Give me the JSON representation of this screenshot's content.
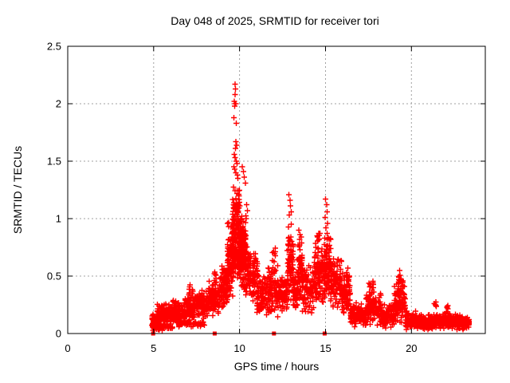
{
  "title": "Day 048 of 2025, SRMTID for receiver tori",
  "colors": {
    "marker": "#ff0000",
    "grid": "#a0a0a0",
    "axis": "#000000",
    "background": "#ffffff",
    "text": "#000000"
  },
  "chart_data": {
    "type": "scatter",
    "title": "Day 048 of 2025, SRMTID for receiver tori",
    "xlabel": "GPS time / hours",
    "ylabel": "SRMTID / TECUs",
    "xlim": [
      0,
      24.3
    ],
    "ylim": [
      0,
      2.5
    ],
    "x_ticks": [
      0,
      5,
      10,
      15,
      20
    ],
    "y_ticks": [
      0,
      0.5,
      1,
      1.5,
      2,
      2.5
    ],
    "grid": true,
    "legend": "none",
    "marker": "plus",
    "marker_color": "#ff0000",
    "data_time_span_hours": [
      4.9,
      23.35
    ],
    "peak": {
      "time": 9.75,
      "value": 2.17
    },
    "zero_markers": {
      "marker": "filled-square",
      "y": 0,
      "x": [
        4.97,
        8.55,
        12.0,
        14.95
      ]
    },
    "outlier_points": [
      [
        9.74,
        2.17
      ],
      [
        9.77,
        2.13
      ],
      [
        9.75,
        2.08
      ],
      [
        9.7,
        2.02
      ],
      [
        9.74,
        2.0
      ],
      [
        9.78,
        2.0
      ],
      [
        9.71,
        1.98
      ],
      [
        9.68,
        1.88
      ],
      [
        9.81,
        1.83
      ],
      [
        9.79,
        1.67
      ],
      [
        9.83,
        1.64
      ],
      [
        9.76,
        1.61
      ],
      [
        9.7,
        1.56
      ],
      [
        9.75,
        1.53
      ],
      [
        9.81,
        1.5
      ],
      [
        9.85,
        1.48
      ],
      [
        9.66,
        1.45
      ],
      [
        9.72,
        1.43
      ],
      [
        9.79,
        1.4
      ],
      [
        9.87,
        1.38
      ],
      [
        9.91,
        1.35
      ],
      [
        10.16,
        1.45
      ],
      [
        10.22,
        1.41
      ],
      [
        10.28,
        1.36
      ],
      [
        10.34,
        1.31
      ],
      [
        10.41,
        1.12
      ],
      [
        10.45,
        1.07
      ],
      [
        12.88,
        1.21
      ],
      [
        12.93,
        1.16
      ],
      [
        12.97,
        1.11
      ],
      [
        13.01,
        1.06
      ],
      [
        12.9,
        1.03
      ],
      [
        15.0,
        1.17
      ],
      [
        15.06,
        1.12
      ],
      [
        15.09,
        1.06
      ],
      [
        14.97,
        1.01
      ],
      [
        15.12,
        0.96
      ],
      [
        15.03,
        0.92
      ],
      [
        13.45,
        0.9
      ],
      [
        13.52,
        0.86
      ],
      [
        16.3,
        0.57
      ],
      [
        19.32,
        0.55
      ]
    ],
    "cluster_format": [
      "x_min_hours",
      "x_max_hours",
      "y_min_tecus",
      "y_max_tecus",
      "point_count"
    ],
    "density_clusters": [
      [
        4.88,
        5.35,
        0.03,
        0.18,
        85
      ],
      [
        4.95,
        6.1,
        0.02,
        0.09,
        50
      ],
      [
        5.2,
        6.05,
        0.07,
        0.27,
        110
      ],
      [
        6.05,
        6.75,
        0.08,
        0.3,
        100
      ],
      [
        6.3,
        8.0,
        0.05,
        0.13,
        45
      ],
      [
        6.75,
        7.45,
        0.1,
        0.35,
        100
      ],
      [
        7.0,
        7.35,
        0.32,
        0.44,
        10
      ],
      [
        7.45,
        8.15,
        0.12,
        0.38,
        100
      ],
      [
        8.15,
        8.85,
        0.15,
        0.47,
        100
      ],
      [
        8.5,
        8.68,
        0.44,
        0.56,
        8
      ],
      [
        8.85,
        9.35,
        0.2,
        0.62,
        105
      ],
      [
        9.3,
        9.65,
        0.3,
        0.98,
        100
      ],
      [
        9.58,
        10.02,
        0.45,
        1.32,
        175
      ],
      [
        9.95,
        10.38,
        0.5,
        1.05,
        115
      ],
      [
        10.0,
        10.55,
        0.33,
        0.8,
        95
      ],
      [
        10.5,
        11.05,
        0.25,
        0.75,
        90
      ],
      [
        11.0,
        11.6,
        0.12,
        0.55,
        80
      ],
      [
        11.55,
        12.25,
        0.12,
        0.62,
        100
      ],
      [
        11.9,
        12.1,
        0.58,
        0.75,
        8
      ],
      [
        12.25,
        12.78,
        0.18,
        0.52,
        75
      ],
      [
        12.78,
        13.12,
        0.28,
        1.0,
        90
      ],
      [
        13.12,
        13.4,
        0.2,
        0.55,
        50
      ],
      [
        13.35,
        13.65,
        0.25,
        0.85,
        60
      ],
      [
        13.65,
        14.35,
        0.16,
        0.6,
        95
      ],
      [
        14.35,
        14.95,
        0.22,
        0.8,
        105
      ],
      [
        14.5,
        14.75,
        0.78,
        0.9,
        8
      ],
      [
        14.95,
        15.3,
        0.28,
        0.92,
        100
      ],
      [
        15.3,
        15.95,
        0.2,
        0.72,
        100
      ],
      [
        15.95,
        16.45,
        0.12,
        0.55,
        80
      ],
      [
        16.45,
        17.35,
        0.05,
        0.28,
        125
      ],
      [
        17.35,
        18.25,
        0.06,
        0.4,
        125
      ],
      [
        17.5,
        17.8,
        0.38,
        0.48,
        10
      ],
      [
        18.25,
        19.0,
        0.04,
        0.26,
        100
      ],
      [
        19.0,
        19.65,
        0.07,
        0.45,
        100
      ],
      [
        19.25,
        19.5,
        0.42,
        0.52,
        14
      ],
      [
        19.65,
        20.35,
        0.03,
        0.2,
        100
      ],
      [
        20.35,
        21.25,
        0.03,
        0.17,
        120
      ],
      [
        21.25,
        22.25,
        0.03,
        0.19,
        130
      ],
      [
        21.3,
        21.45,
        0.19,
        0.31,
        6
      ],
      [
        22.0,
        22.15,
        0.18,
        0.27,
        5
      ],
      [
        22.25,
        23.05,
        0.03,
        0.17,
        120
      ],
      [
        23.05,
        23.35,
        0.04,
        0.15,
        55
      ]
    ],
    "seed": 48
  }
}
